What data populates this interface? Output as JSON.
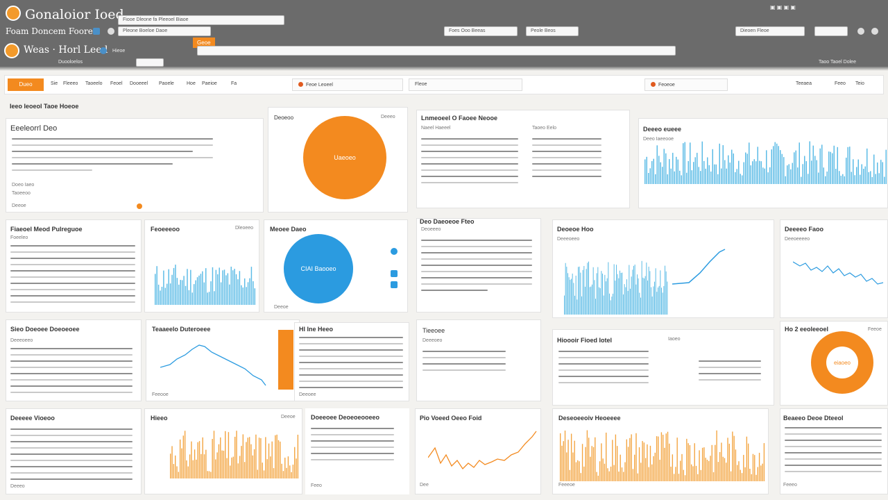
{
  "window": {
    "title_top": "Gonaloior Ioed",
    "title_sub": "Foam Doncem Foore",
    "title_main": "Weas · Horl Leed",
    "tab_label": "Hieoe",
    "accent_tab": "Geoe",
    "url_1": "Fiooe  Dleone fa  Pleeoel  Biaoe",
    "url_2": "Pleone  Boeloe  Daoe",
    "url_3": "Foes  Ooo  Beeas",
    "url_4": "Peole  Beos",
    "url_5": "Dieoen  Fleoe",
    "chip_left": "Duooloelos",
    "chip_right": "Taoo  Taoel  Dolee"
  },
  "toolbar": {
    "primary": "Dueo",
    "items": [
      "Sie",
      "Fleeeo",
      "Taoeelo",
      "Feoel",
      "Dooeeel",
      "Paoele",
      "Hoe",
      "Paeioe",
      "Fa"
    ],
    "box_1": "Feoe  Leoeel",
    "box_2": "Fleoe",
    "box_3": "Feoeoe",
    "right_items": [
      "Teeaea",
      "Feeo",
      "Teio"
    ]
  },
  "panels": {
    "p1": {
      "title": "Ieeo Ieoeol  Taoe  Hoeoe",
      "heading": "Eeeleorrl Deo",
      "sub_a": "Doeo  Iaeo",
      "sub_b": "Taoeeoo",
      "sub_c": "Deeoe"
    },
    "p2": {
      "title": "Deoeoo",
      "pie_label": "Uaeoeo",
      "side": "Deeeo"
    },
    "p3": {
      "title": "Lnmeoeel O Faoee Neooe",
      "sub": "Naeel Haeeel",
      "sub2": "Taoeo Eelo"
    },
    "p4": {
      "title": "Deeeo eueee",
      "sub": "Deeo Iaeeooe"
    },
    "p5": {
      "title": "Fiaeoel Meod Pulreguoe",
      "sub": "Foeeleo"
    },
    "p6": {
      "title": "Feoeeeoo",
      "sub": "Dleoeeo"
    },
    "p7": {
      "title": "Meoee  Daeo",
      "pie_label": "CIAI Baooeo",
      "sub": "Deeoe"
    },
    "p8": {
      "title": "Deo  Daeoeoe  Fteo",
      "sub": "Deoeeeo"
    },
    "p9": {
      "title": "Deoeoe  Hoo",
      "sub": "Deeeoeeo"
    },
    "p10": {
      "title": "Deeeeo Faoo",
      "sub": "Deeoeeeeo"
    },
    "p11": {
      "title": "Sieo  Doeoee  Doeoeoee",
      "sub": "Deeeoeeo"
    },
    "p12": {
      "title": "Teaaeelo Duteroeee",
      "sub": "Feeooe"
    },
    "p13": {
      "title": "Hl Ine Heeo",
      "sub": "Deeoee"
    },
    "p14": {
      "title": "Tieeoee",
      "sub": "Deeeoeo"
    },
    "p15": {
      "title": "Hioooir Fioed Iotel",
      "sub": "Iaoeo"
    },
    "p16": {
      "title": "Ho 2 eeoleeoel",
      "donut_label": "eiaoeo",
      "sub": "Feeoe"
    },
    "p17": {
      "title": "Deeeee Vioeoo",
      "sub": "Deeeo"
    },
    "p18": {
      "title": "Hieeo",
      "sub": "Deeoe"
    },
    "p19": {
      "title": "Doeeoee  Deoeoeooeeo",
      "sub": "Feeo"
    },
    "p20": {
      "title": "Pio  Voeed  Oeeo  Foid",
      "sub": "Dee"
    },
    "p21": {
      "title": "Deseoeeoiv  Heoeeee",
      "sub": "Feeeoe"
    },
    "p22": {
      "title": "Beaeeo  Deoe Dteeol",
      "sub": "Feeeo"
    }
  },
  "colors": {
    "orange": "#f38a1f",
    "blue": "#2b9be0",
    "lightblue": "#5bbbe6",
    "chrome": "#6b6b6b"
  }
}
